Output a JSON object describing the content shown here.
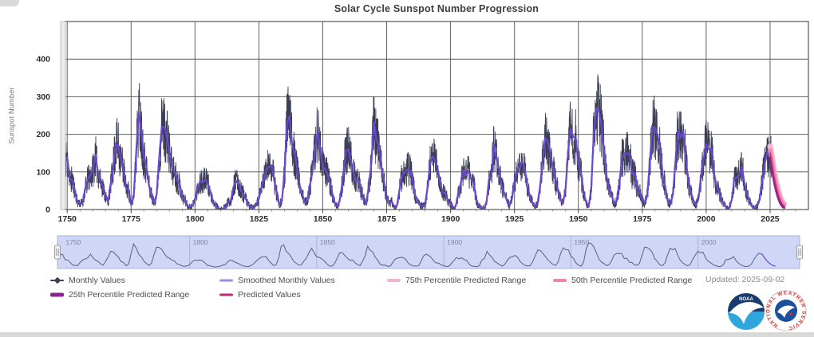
{
  "title": "Solar Cycle Sunspot Number Progression",
  "updated": "Updated: 2025-09-02",
  "colors": {
    "monthly": "#3a3f56",
    "smoothed_legend": "#9c8ce4",
    "smoothed_line": "#6b46cf",
    "p75": "#f5b3cf",
    "p50": "#ef85ad",
    "p25": "#8d2490",
    "predicted": "#c22a72",
    "grid": "#606060",
    "axis_text": "#2b2b2b",
    "nav_line": "#59627f",
    "nav_pred": "#7e57d0",
    "band_fill": "#cfd6f6",
    "band_border": "#a9b2da",
    "noaa_navy": "#173b6c",
    "noaa_sky": "#2fa7dd",
    "nws_red": "#d42e2e",
    "nws_blue": "#1d4f9c"
  },
  "chart_data": {
    "type": "line",
    "title": "Solar Cycle Sunspot Number Progression",
    "xlabel": "",
    "ylabel": "Sunspot Number",
    "xlim": [
      1749,
      2040
    ],
    "ylim": [
      0,
      500
    ],
    "xticks": [
      1750,
      1775,
      1800,
      1825,
      1850,
      1875,
      1900,
      1925,
      1950,
      1975,
      2000,
      2025
    ],
    "yticks": [
      0,
      100,
      200,
      300,
      400
    ],
    "x_minor_step": 5,
    "grid": true,
    "legend_position": "bottom",
    "smoothed": {
      "name": "Smoothed Monthly Values",
      "x_start": 1749,
      "x_step": 1,
      "values": [
        135,
        139,
        80,
        79,
        51,
        20,
        16,
        17,
        54,
        79,
        90,
        104,
        143,
        102,
        75,
        60,
        35,
        20,
        63,
        116,
        176,
        168,
        136,
        110,
        58,
        51,
        12,
        33,
        154,
        257,
        210,
        141,
        113,
        64,
        38,
        17,
        40,
        139,
        220,
        218,
        196,
        151,
        111,
        100,
        78,
        68,
        35,
        27,
        11,
        7,
        11,
        25,
        57,
        75,
        72,
        79,
        70,
        47,
        17,
        13,
        4,
        0,
        2,
        8,
        20,
        23,
        59,
        76,
        68,
        51,
        40,
        26,
        11,
        7,
        3,
        14,
        28,
        60,
        82,
        107,
        112,
        118,
        78,
        45,
        15,
        22,
        96,
        230,
        248,
        174,
        150,
        108,
        62,
        40,
        18,
        25,
        66,
        103,
        162,
        209,
        159,
        111,
        108,
        90,
        67,
        34,
        11,
        8,
        38,
        92,
        156,
        160,
        130,
        100,
        74,
        79,
        50,
        27,
        13,
        62,
        122,
        232,
        185,
        169,
        110,
        74,
        28,
        19,
        20,
        6,
        10,
        53,
        90,
        99,
        106,
        105,
        86,
        42,
        21,
        11,
        10,
        12,
        59,
        122,
        142,
        130,
        106,
        69,
        44,
        44,
        20,
        16,
        4,
        9,
        40,
        70,
        105,
        90,
        103,
        81,
        73,
        30,
        9,
        6,
        2,
        16,
        78,
        95,
        173,
        134,
        105,
        62,
        44,
        24,
        9,
        28,
        74,
        107,
        114,
        129,
        108,
        60,
        36,
        18,
        9,
        15,
        60,
        127,
        190,
        182,
        152,
        113,
        79,
        51,
        27,
        16,
        55,
        154,
        214,
        193,
        191,
        119,
        98,
        45,
        20,
        7,
        53,
        201,
        269,
        262,
        225,
        159,
        90,
        54,
        38,
        15,
        22,
        67,
        133,
        150,
        149,
        148,
        94,
        97,
        54,
        49,
        23,
        18,
        39,
        131,
        220,
        218,
        198,
        162,
        91,
        61,
        21,
        15,
        41,
        130,
        211,
        191,
        208,
        133,
        76,
        45,
        25,
        12,
        29,
        88,
        136,
        174,
        160,
        163,
        99,
        65,
        46,
        25,
        13,
        4,
        5,
        25,
        81,
        85,
        94,
        114,
        70,
        40,
        22,
        7,
        4,
        9,
        30,
        83,
        125,
        155,
        140
      ]
    },
    "monthly": {
      "name": "Monthly Values",
      "derived_from": "smoothed",
      "points_per_year": 12,
      "noise_seed": 11,
      "noise_frac": 0.38,
      "noise_abs": 7,
      "x_end": 2025.6
    },
    "predicted": {
      "name": "Predicted Values",
      "x": [
        2025.0,
        2025.5,
        2026,
        2026.5,
        2027,
        2027.5,
        2028,
        2028.5,
        2029,
        2029.5,
        2030,
        2030.5
      ],
      "values": [
        150,
        132,
        110,
        90,
        72,
        57,
        44,
        33,
        24,
        17,
        12,
        9
      ]
    },
    "p75": {
      "name": "75th Percentile Predicted Range",
      "values": [
        168,
        150,
        127,
        106,
        87,
        70,
        56,
        44,
        33,
        25,
        19,
        15
      ]
    },
    "p50": {
      "name": "50th Percentile Predicted Range",
      "values": [
        158,
        140,
        118,
        97,
        79,
        63,
        50,
        38,
        28,
        21,
        15,
        12
      ]
    },
    "p25": {
      "name": "25th Percentile Predicted Range",
      "values": [
        138,
        119,
        97,
        78,
        61,
        47,
        35,
        25,
        17,
        11,
        7,
        5
      ]
    }
  },
  "navigator": {
    "labels": [
      "1750",
      "1800",
      "1850",
      "1900",
      "1950",
      "2000"
    ],
    "label_years": [
      1750,
      1800,
      1850,
      1900,
      1950,
      2000
    ],
    "gridline_years": [
      1800,
      1850,
      1900,
      1950,
      2000
    ],
    "range_start": 1748,
    "range_end": 2040
  },
  "legend": {
    "items": [
      {
        "label": "Monthly Values"
      },
      {
        "label": "Smoothed Monthly Values"
      },
      {
        "label": "75th Percentile Predicted Range"
      },
      {
        "label": "50th Percentile Predicted Range"
      },
      {
        "label": "25th Percentile Predicted Range"
      },
      {
        "label": "Predicted Values"
      }
    ]
  },
  "logos": {
    "noaa_text": "NOAA",
    "nws_ring_text": "NATIONAL WEATHER SERVICE"
  }
}
